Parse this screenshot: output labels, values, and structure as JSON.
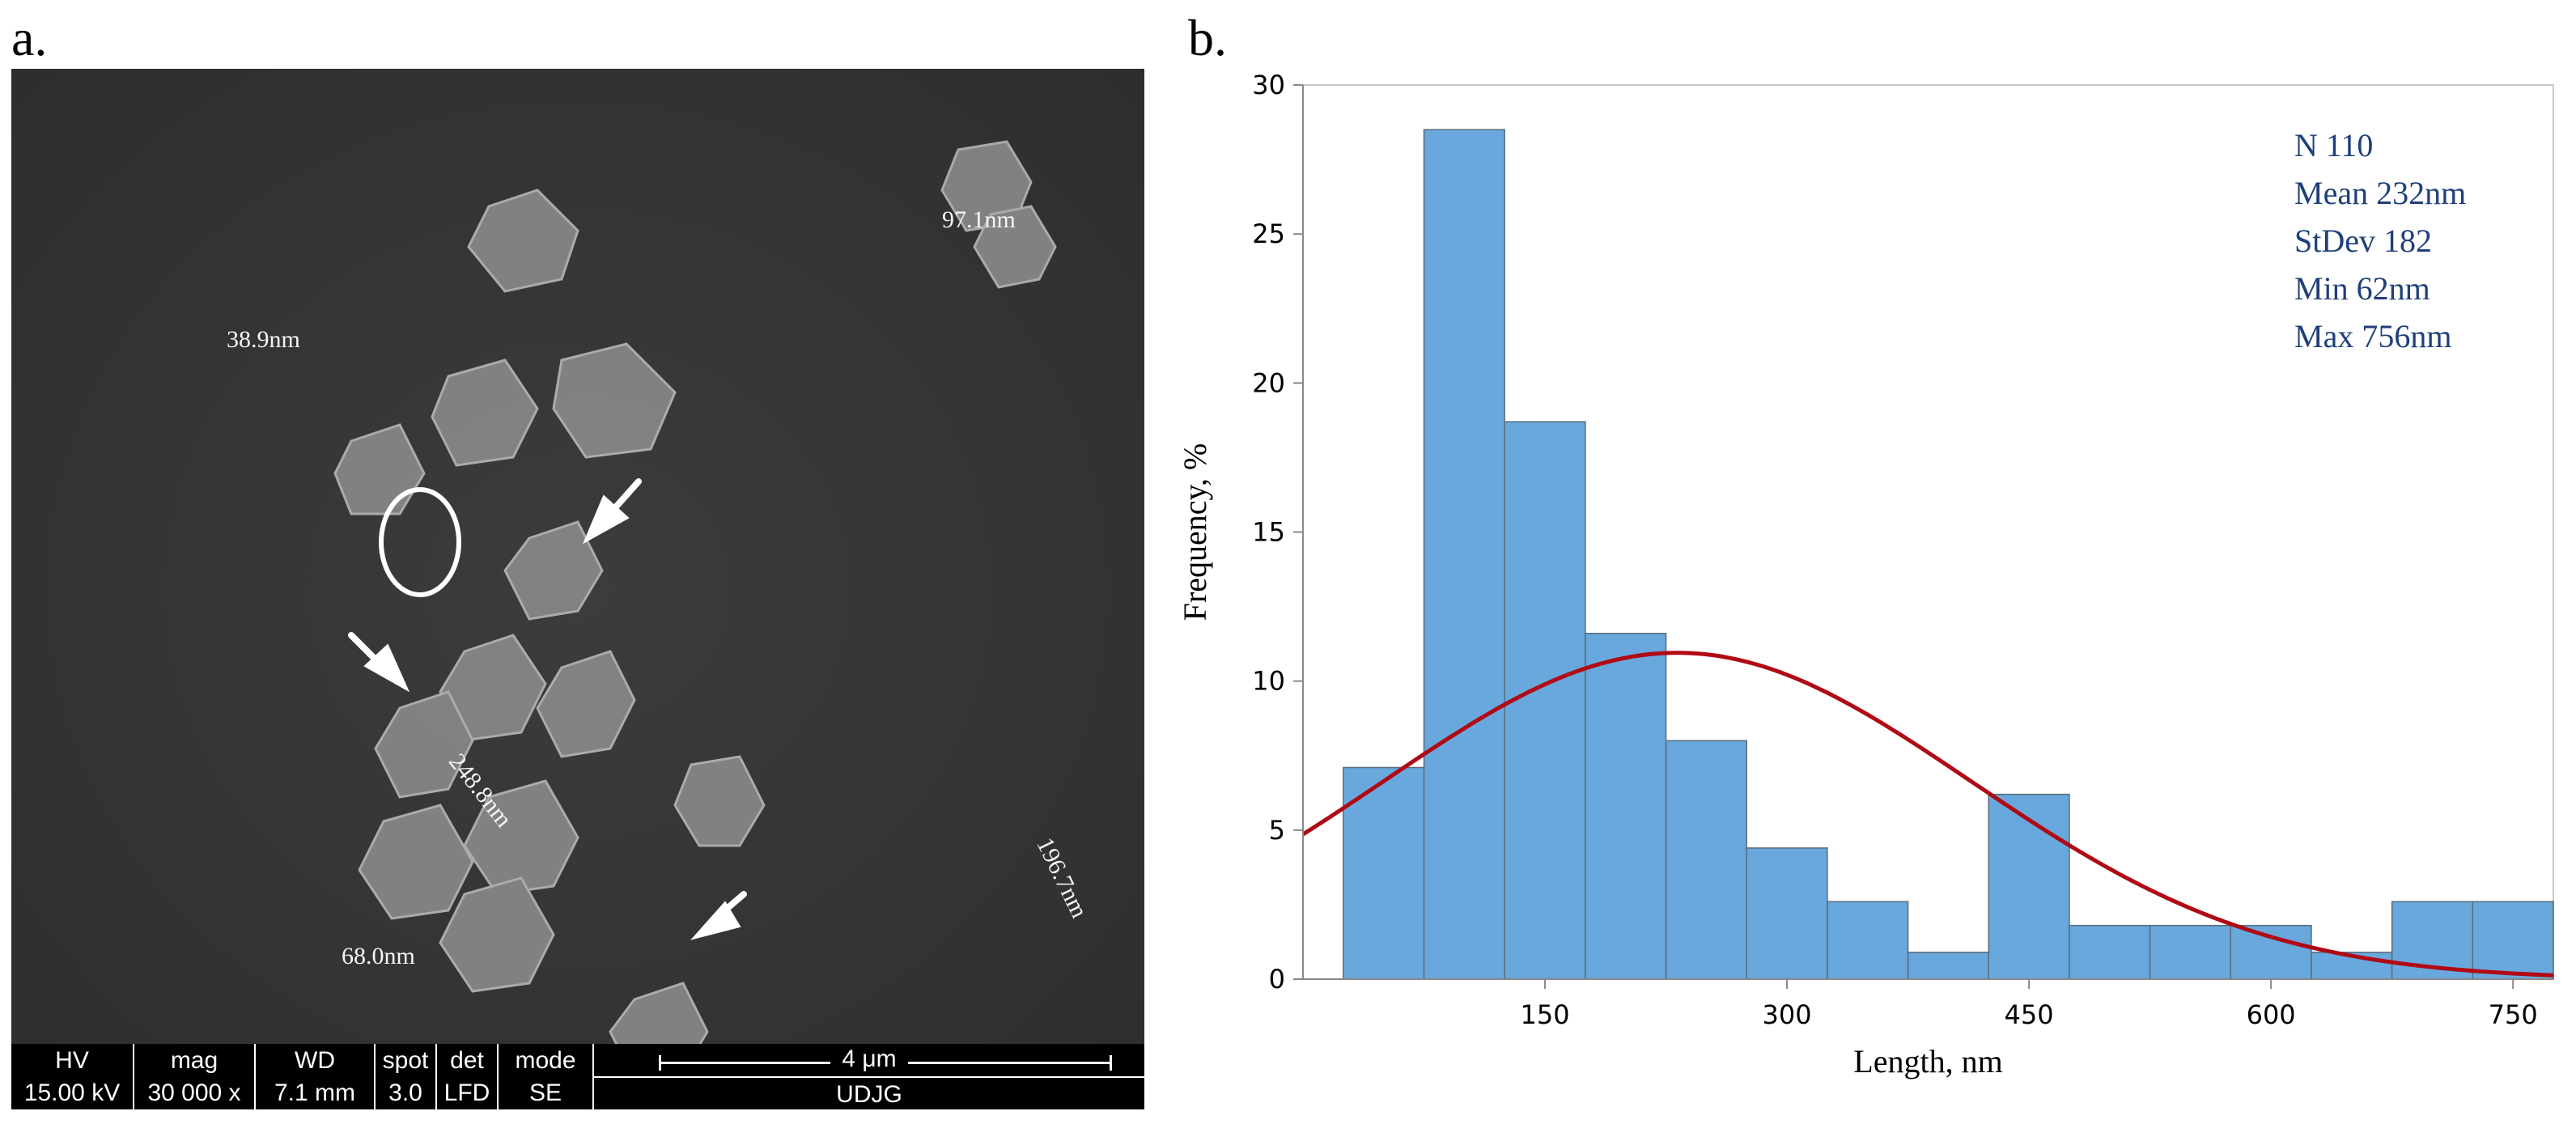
{
  "panels": {
    "a": "a.",
    "b": "b."
  },
  "sem": {
    "measurements": [
      "97.1nm",
      "38.9nm",
      "248.8nm",
      "196.7nm",
      "68.0nm"
    ],
    "info_bar": {
      "hv_label": "HV",
      "hv_value": "15.00 kV",
      "mag_label": "mag",
      "mag_value": "30 000 x",
      "wd_label": "WD",
      "wd_value": "7.1 mm",
      "spot_label": "spot",
      "spot_value": "3.0",
      "det_label": "det",
      "det_value": "LFD",
      "mode_label": "mode",
      "mode_value": "SE",
      "scale_label": "4 μm",
      "institution": "UDJG"
    }
  },
  "chart_data": {
    "type": "bar",
    "xlabel": "Length, nm",
    "ylabel": "Frequency, %",
    "xlim": [
      0,
      775
    ],
    "ylim": [
      0,
      30
    ],
    "x_ticks": [
      150,
      300,
      450,
      600,
      750
    ],
    "y_ticks": [
      0,
      5,
      10,
      15,
      20,
      25,
      30
    ],
    "bin_width": 50,
    "bin_starts": [
      25,
      75,
      125,
      175,
      225,
      275,
      325,
      375,
      425,
      475,
      525,
      575,
      625,
      675,
      725
    ],
    "values": [
      7.1,
      28.5,
      18.7,
      11.6,
      8.0,
      4.4,
      2.6,
      0.9,
      6.2,
      1.8,
      1.8,
      1.8,
      0.9,
      2.6,
      2.6
    ],
    "bar_color": "#69a8dc",
    "curve_color": "#b00a14",
    "fit": {
      "type": "normal",
      "mean": 232,
      "stdev": 182,
      "peak": 10.95
    },
    "stats": [
      "N 110",
      "Mean 232nm",
      "StDev 182",
      "Min    62nm",
      "Max 756nm"
    ],
    "grid": false
  }
}
